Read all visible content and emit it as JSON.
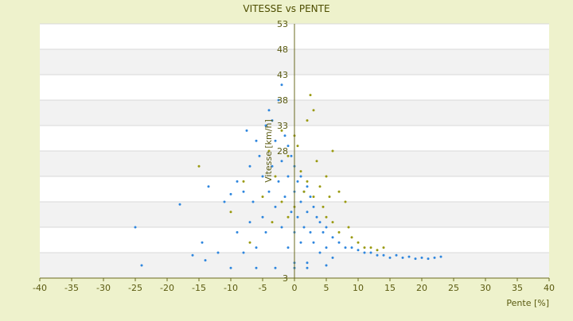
{
  "chart_data": {
    "type": "scatter",
    "title": "VITESSE vs PENTE",
    "xlabel": "Pente [%]",
    "ylabel": "Vitesse [km/h]",
    "xlim": [
      -40,
      40
    ],
    "ylim": [
      3,
      53
    ],
    "x_ticks": [
      -40,
      -35,
      -30,
      -25,
      -20,
      -15,
      -10,
      -5,
      0,
      5,
      10,
      15,
      20,
      25,
      30,
      35,
      40
    ],
    "y_ticks": [
      3,
      8,
      13,
      18,
      23,
      28,
      33,
      38,
      43,
      48,
      53
    ],
    "y_tick_labels": [
      "3",
      "",
      "",
      "",
      "",
      "28",
      "33",
      "38",
      "43",
      "48",
      "53"
    ],
    "grid": true,
    "legend": "none",
    "colors": {
      "background": "#eef2cc",
      "plot": "#ffffff",
      "band": "#f2f2f2",
      "series_blue": "#2e86de",
      "series_olive": "#9a9a10",
      "axis": "#6b6b20"
    },
    "series": [
      {
        "color": "#2e86de",
        "points": [
          [
            -25,
            13
          ],
          [
            -24,
            5.5
          ],
          [
            -18,
            17.5
          ],
          [
            -16,
            7.5
          ],
          [
            -14.5,
            10
          ],
          [
            -14,
            6.5
          ],
          [
            -13.5,
            21
          ],
          [
            -12,
            8
          ],
          [
            -11,
            18
          ],
          [
            -10,
            19.5
          ],
          [
            -10,
            5
          ],
          [
            -9,
            22
          ],
          [
            -9,
            12
          ],
          [
            -8,
            20
          ],
          [
            -8,
            8
          ],
          [
            -7.5,
            32
          ],
          [
            -7,
            25
          ],
          [
            -7,
            14
          ],
          [
            -6.5,
            18
          ],
          [
            -6,
            30
          ],
          [
            -6,
            9
          ],
          [
            -5.5,
            27
          ],
          [
            -5,
            23
          ],
          [
            -5,
            15
          ],
          [
            -4.5,
            33
          ],
          [
            -4.5,
            12
          ],
          [
            -4,
            36
          ],
          [
            -4,
            20
          ],
          [
            -3.5,
            34
          ],
          [
            -3.5,
            25
          ],
          [
            -3,
            30
          ],
          [
            -3,
            17
          ],
          [
            -2.5,
            38
          ],
          [
            -2.5,
            22
          ],
          [
            -2,
            41
          ],
          [
            -2,
            26
          ],
          [
            -2,
            13
          ],
          [
            -1.5,
            31
          ],
          [
            -1.5,
            19
          ],
          [
            -1,
            29
          ],
          [
            -1,
            23
          ],
          [
            -1,
            9
          ],
          [
            -0.5,
            27
          ],
          [
            -0.5,
            16
          ],
          [
            0,
            25
          ],
          [
            0,
            20
          ],
          [
            0,
            12
          ],
          [
            0,
            6
          ],
          [
            0.5,
            22
          ],
          [
            0.5,
            15
          ],
          [
            1,
            23
          ],
          [
            1,
            18
          ],
          [
            1,
            10
          ],
          [
            1.5,
            20
          ],
          [
            1.5,
            13
          ],
          [
            2,
            21
          ],
          [
            2,
            16
          ],
          [
            2,
            6
          ],
          [
            2.5,
            19
          ],
          [
            2.5,
            12
          ],
          [
            3,
            17
          ],
          [
            3,
            10
          ],
          [
            3.5,
            15
          ],
          [
            4,
            14
          ],
          [
            4,
            8
          ],
          [
            4.5,
            12
          ],
          [
            5,
            13
          ],
          [
            5,
            9
          ],
          [
            6,
            11
          ],
          [
            6,
            7
          ],
          [
            7,
            10
          ],
          [
            8,
            9
          ],
          [
            9,
            9
          ],
          [
            10,
            8.5
          ],
          [
            11,
            8
          ],
          [
            12,
            8
          ],
          [
            13,
            7.5
          ],
          [
            14,
            7.5
          ],
          [
            15,
            7
          ],
          [
            16,
            7.5
          ],
          [
            17,
            7
          ],
          [
            18,
            7.2
          ],
          [
            19,
            6.8
          ],
          [
            20,
            7
          ],
          [
            21,
            6.8
          ],
          [
            22,
            7
          ],
          [
            23,
            7.2
          ],
          [
            -6,
            5
          ],
          [
            -3,
            5
          ],
          [
            0,
            5
          ],
          [
            2,
            5
          ],
          [
            5,
            5.5
          ]
        ]
      },
      {
        "color": "#9a9a10",
        "points": [
          [
            -15,
            25
          ],
          [
            -10,
            16
          ],
          [
            -8,
            22
          ],
          [
            -7,
            10
          ],
          [
            -5,
            19
          ],
          [
            -4,
            28
          ],
          [
            -3.5,
            14
          ],
          [
            -3,
            23
          ],
          [
            -2,
            32
          ],
          [
            -2,
            18
          ],
          [
            -1,
            15
          ],
          [
            -1,
            27
          ],
          [
            0,
            31
          ],
          [
            0,
            17
          ],
          [
            0.5,
            29
          ],
          [
            1,
            24
          ],
          [
            1.5,
            20
          ],
          [
            2,
            34
          ],
          [
            2,
            22
          ],
          [
            2.5,
            39
          ],
          [
            3,
            36
          ],
          [
            3,
            19
          ],
          [
            3.5,
            26
          ],
          [
            4,
            21
          ],
          [
            4.5,
            17
          ],
          [
            5,
            23
          ],
          [
            5,
            15
          ],
          [
            5.5,
            19
          ],
          [
            6,
            28
          ],
          [
            6,
            14
          ],
          [
            7,
            20
          ],
          [
            7,
            12
          ],
          [
            8,
            18
          ],
          [
            8.5,
            13
          ],
          [
            9,
            11
          ],
          [
            10,
            10
          ],
          [
            11,
            9
          ],
          [
            12,
            9
          ],
          [
            13,
            8.5
          ],
          [
            14,
            9
          ]
        ]
      }
    ]
  }
}
